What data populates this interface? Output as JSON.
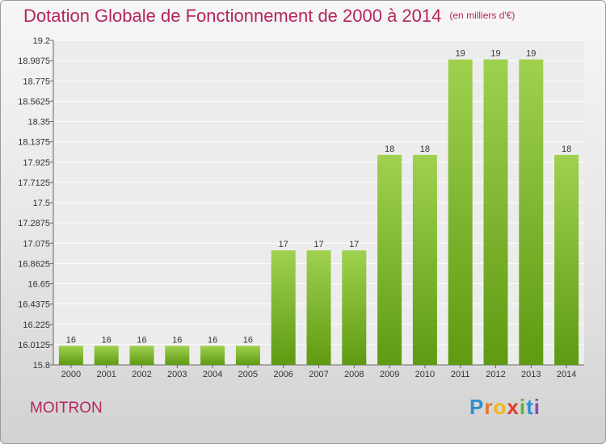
{
  "title": "Dotation Globale de Fonctionnement de 2000 à 2014",
  "unit": "(en milliers d'€)",
  "commune": "MOITRON",
  "logo": {
    "letters": [
      "P",
      "r",
      "o",
      "x",
      "i",
      "t",
      "i"
    ],
    "colors": [
      "#2f8fd0",
      "#e8762a",
      "#f2b51c",
      "#e23a2a",
      "#5bb336",
      "#2f8fd0",
      "#8e4bb0"
    ]
  },
  "colors": {
    "bar_top": "#9fd14f",
    "bar_bottom": "#5f9a12",
    "title": "#b5255f"
  },
  "chart_data": {
    "type": "bar",
    "categories": [
      "2000",
      "2001",
      "2002",
      "2003",
      "2004",
      "2005",
      "2006",
      "2007",
      "2008",
      "2009",
      "2010",
      "2011",
      "2012",
      "2013",
      "2014"
    ],
    "values": [
      16,
      16,
      16,
      16,
      16,
      16,
      17,
      17,
      17,
      18,
      18,
      19,
      19,
      19,
      18
    ],
    "value_labels": [
      "16",
      "16",
      "16",
      "16",
      "16",
      "16",
      "17",
      "17",
      "17",
      "18",
      "18",
      "19",
      "19",
      "19",
      "18"
    ],
    "ylim": [
      15.8,
      19.2
    ],
    "yticks": [
      "19.2",
      "18.9875",
      "18.775",
      "18.5625",
      "18.35",
      "18.1375",
      "17.925",
      "17.7125",
      "17.5",
      "17.2875",
      "17.075",
      "16.8625",
      "16.65",
      "16.4375",
      "16.225",
      "16.0125",
      "15.8"
    ],
    "grid": true
  }
}
